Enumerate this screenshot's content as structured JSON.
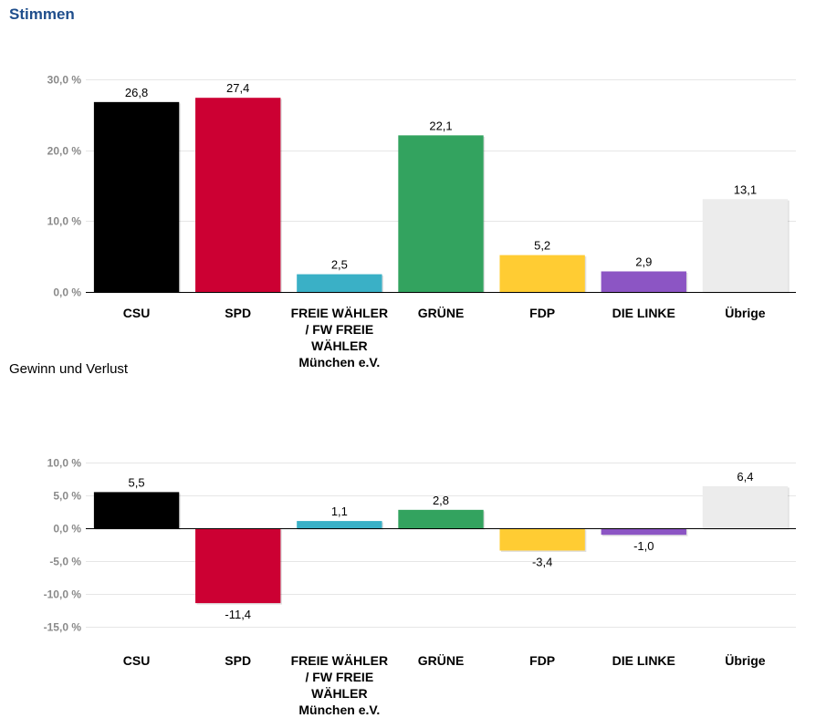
{
  "header": {
    "title": "Stimmen",
    "subtitle": "Gewinn und Verlust"
  },
  "chart_data": [
    {
      "type": "bar",
      "title": "Stimmen",
      "categories": [
        "CSU",
        "SPD",
        "FREIE WÄHLER / FW FREIE WÄHLER München e.V.",
        "GRÜNE",
        "FDP",
        "DIE LINKE",
        "Übrige"
      ],
      "category_lines": [
        [
          "CSU"
        ],
        [
          "SPD"
        ],
        [
          "FREIE WÄHLER",
          "/ FW FREIE",
          "WÄHLER",
          "München e.V."
        ],
        [
          "GRÜNE"
        ],
        [
          "FDP"
        ],
        [
          "DIE LINKE"
        ],
        [
          "Übrige"
        ]
      ],
      "values": [
        26.8,
        27.4,
        2.5,
        22.1,
        5.2,
        2.9,
        13.1
      ],
      "value_labels": [
        "26,8",
        "27,4",
        "2,5",
        "22,1",
        "5,2",
        "2,9",
        "13,1"
      ],
      "colors": [
        "#000000",
        "#cc0033",
        "#3ab0c6",
        "#33a35f",
        "#ffcc33",
        "#8c55c4",
        "#ececec"
      ],
      "yticks": [
        0,
        10,
        20,
        30
      ],
      "ytick_labels": [
        "0,0 %",
        "10,0 %",
        "20,0 %",
        "30,0 %"
      ],
      "ylim": [
        0,
        30
      ],
      "xlabel": "",
      "ylabel": "",
      "grid": true,
      "legend": "none"
    },
    {
      "type": "bar",
      "title": "Gewinn und Verlust",
      "categories": [
        "CSU",
        "SPD",
        "FREIE WÄHLER / FW FREIE WÄHLER München e.V.",
        "GRÜNE",
        "FDP",
        "DIE LINKE",
        "Übrige"
      ],
      "category_lines": [
        [
          "CSU"
        ],
        [
          "SPD"
        ],
        [
          "FREIE WÄHLER",
          "/ FW FREIE",
          "WÄHLER",
          "München e.V."
        ],
        [
          "GRÜNE"
        ],
        [
          "FDP"
        ],
        [
          "DIE LINKE"
        ],
        [
          "Übrige"
        ]
      ],
      "values": [
        5.5,
        -11.4,
        1.1,
        2.8,
        -3.4,
        -1.0,
        6.4
      ],
      "value_labels": [
        "5,5",
        "-11,4",
        "1,1",
        "2,8",
        "-3,4",
        "-1,0",
        "6,4"
      ],
      "colors": [
        "#000000",
        "#cc0033",
        "#3ab0c6",
        "#33a35f",
        "#ffcc33",
        "#8c55c4",
        "#ececec"
      ],
      "yticks": [
        -15,
        -10,
        -5,
        0,
        5,
        10
      ],
      "ytick_labels": [
        "-15,0 %",
        "-10,0 %",
        "-5,0 %",
        "0,0 %",
        "5,0 %",
        "10,0 %"
      ],
      "ylim": [
        -15,
        10
      ],
      "xlabel": "",
      "ylabel": "",
      "grid": true,
      "legend": "none"
    }
  ]
}
